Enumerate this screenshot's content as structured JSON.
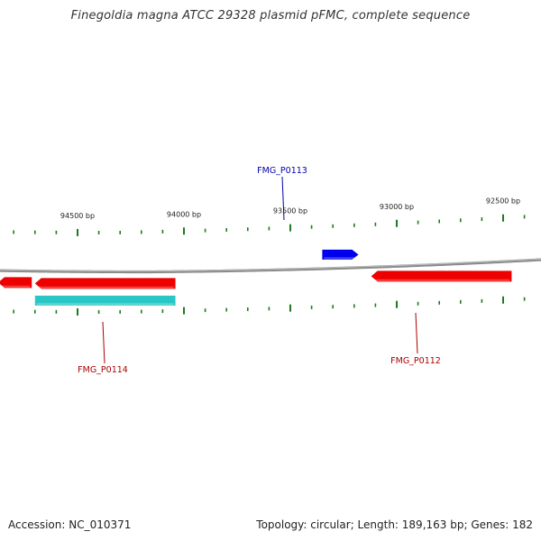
{
  "title": "Finegoldia magna ATCC 29328 plasmid pFMC, complete sequence",
  "footer": {
    "accession": "Accession: NC_010371",
    "summary": "Topology: circular; Length: 189,163 bp; Genes: 182"
  },
  "colors": {
    "backbone": "#8a8a8a",
    "tick": "#1e7a1e",
    "forward_gene": "#0000ee",
    "reverse_gene": "#ee0000",
    "cds_feature": "#2ac6c6",
    "label_blue": "#0000aa",
    "label_red": "#aa0000"
  },
  "ticks": {
    "major": [
      {
        "bp": 94500,
        "label": "94500 bp"
      },
      {
        "bp": 94000,
        "label": "94000 bp"
      },
      {
        "bp": 93500,
        "label": "93500 bp"
      },
      {
        "bp": 93000,
        "label": "93000 bp"
      },
      {
        "bp": 92500,
        "label": "92500 bp"
      }
    ]
  },
  "features": [
    {
      "name": "FMG_P0113",
      "type": "gene",
      "strand": "forward",
      "start": 93350,
      "end": 93180,
      "labeled": true
    },
    {
      "name": "FMG_P0112",
      "type": "gene",
      "strand": "reverse",
      "start": 93120,
      "end": 92460,
      "labeled": true
    },
    {
      "name": "FMG_P0114",
      "type": "gene",
      "strand": "reverse",
      "start": 94700,
      "end": 94040,
      "labeled": true
    },
    {
      "name": "",
      "type": "gene",
      "strand": "reverse",
      "start": 94880,
      "end": 94715,
      "labeled": false
    },
    {
      "name": "",
      "type": "CDS",
      "strand": "reverse",
      "start": 94700,
      "end": 94040,
      "labeled": false
    }
  ]
}
